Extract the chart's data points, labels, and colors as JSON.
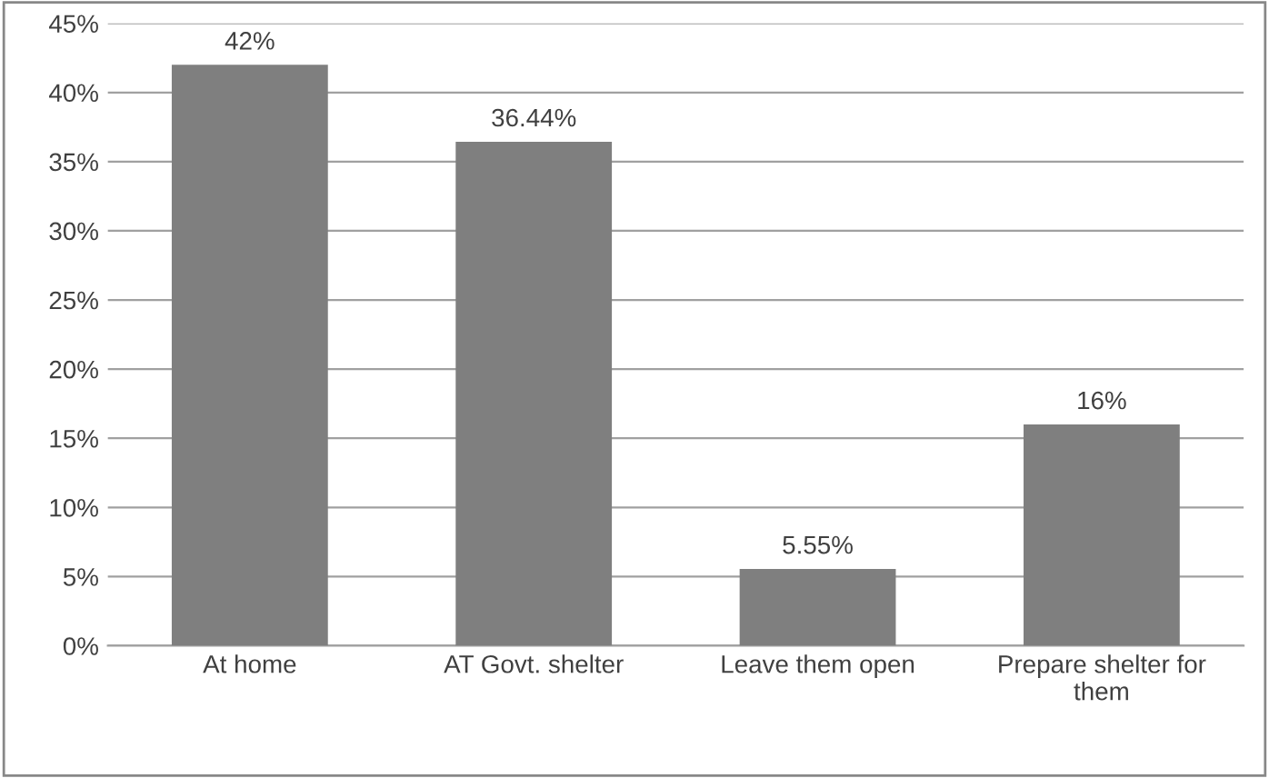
{
  "chart_data": {
    "type": "bar",
    "categories": [
      "At home",
      "AT Govt. shelter",
      "Leave them open",
      "Prepare shelter for them"
    ],
    "values": [
      42,
      36.44,
      5.55,
      16
    ],
    "value_labels": [
      "42%",
      "36.44%",
      "5.55%",
      "16%"
    ],
    "color": "#7f7f7f",
    "ylim": [
      0,
      45
    ],
    "yticks": [
      {
        "value": 0,
        "label": "0%"
      },
      {
        "value": 5,
        "label": "5%"
      },
      {
        "value": 10,
        "label": "10%"
      },
      {
        "value": 15,
        "label": "15%"
      },
      {
        "value": 20,
        "label": "20%"
      },
      {
        "value": 25,
        "label": "25%"
      },
      {
        "value": 30,
        "label": "30%"
      },
      {
        "value": 35,
        "label": "35%"
      },
      {
        "value": 40,
        "label": "40%"
      },
      {
        "value": 45,
        "label": "45%"
      }
    ],
    "grid": "y",
    "legend": false
  }
}
